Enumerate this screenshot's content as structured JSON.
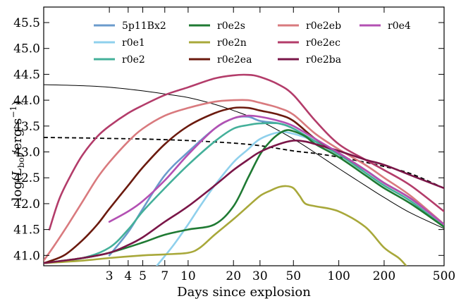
{
  "chart_data": {
    "type": "line",
    "xlabel": "Days since explosion",
    "ylabel_parts": [
      "log(",
      "L",
      "bol",
      "/erg s",
      "−1",
      ")"
    ],
    "x_scale": "log",
    "xlim": [
      1.1,
      500
    ],
    "ylim": [
      40.8,
      45.8
    ],
    "x_ticks": [
      3,
      4,
      5,
      7,
      10,
      20,
      30,
      50,
      100,
      200,
      500
    ],
    "y_ticks": [
      41.0,
      41.5,
      42.0,
      42.5,
      43.0,
      43.5,
      44.0,
      44.5,
      45.0,
      45.5
    ],
    "y_tick_labels": [
      "41.0",
      "41.5",
      "42.0",
      "42.5",
      "43.0",
      "43.5",
      "44.0",
      "44.5",
      "45.0",
      "45.5"
    ],
    "legend_position": "top",
    "series": [
      {
        "name": "5p11Bx2",
        "color": "#6b9bcc",
        "x": [
          3,
          4,
          5,
          7,
          10,
          15,
          20,
          25,
          30,
          40,
          50,
          70,
          100,
          150,
          200,
          300,
          500
        ],
        "y": [
          41.0,
          41.45,
          41.9,
          42.55,
          43.0,
          43.45,
          43.65,
          43.68,
          43.6,
          43.55,
          43.45,
          43.2,
          42.95,
          42.65,
          42.4,
          42.1,
          41.6
        ]
      },
      {
        "name": "r0e1",
        "color": "#8fd0ec",
        "x": [
          6.2,
          8,
          10,
          12,
          15,
          20,
          25,
          30,
          40,
          50,
          70,
          100,
          150,
          200,
          300,
          500
        ],
        "y": [
          40.8,
          41.2,
          41.6,
          41.95,
          42.35,
          42.8,
          43.05,
          43.25,
          43.38,
          43.35,
          43.2,
          42.95,
          42.65,
          42.4,
          42.1,
          41.6
        ]
      },
      {
        "name": "r0e2",
        "color": "#44b09a",
        "x": [
          1.1,
          2,
          3,
          4,
          5,
          7,
          10,
          15,
          20,
          25,
          30,
          40,
          50,
          70,
          100,
          150,
          200,
          300,
          500
        ],
        "y": [
          40.85,
          40.95,
          41.15,
          41.5,
          41.85,
          42.3,
          42.75,
          43.2,
          43.45,
          43.52,
          43.55,
          43.55,
          43.45,
          43.2,
          42.95,
          42.6,
          42.35,
          42.05,
          41.55
        ]
      },
      {
        "name": "r0e2s",
        "color": "#1f7a33",
        "x": [
          1.1,
          2,
          3,
          5,
          7,
          10,
          15,
          20,
          25,
          30,
          35,
          40,
          45,
          50,
          60,
          70,
          100,
          150,
          200,
          300,
          500
        ],
        "y": [
          40.85,
          40.95,
          41.05,
          41.25,
          41.4,
          41.5,
          41.6,
          41.95,
          42.5,
          42.95,
          43.2,
          43.35,
          43.42,
          43.4,
          43.3,
          43.15,
          42.9,
          42.55,
          42.3,
          42.0,
          41.55
        ]
      },
      {
        "name": "r0e2n",
        "color": "#a8a83a",
        "x": [
          1.1,
          2,
          3,
          5,
          7,
          10,
          12,
          15,
          20,
          25,
          30,
          35,
          40,
          45,
          50,
          55,
          60,
          70,
          100,
          150,
          200,
          250,
          280
        ],
        "y": [
          40.85,
          40.9,
          40.95,
          41.0,
          41.02,
          41.05,
          41.15,
          41.4,
          41.7,
          41.95,
          42.15,
          42.25,
          42.32,
          42.34,
          42.3,
          42.15,
          42.0,
          41.95,
          41.85,
          41.55,
          41.15,
          40.95,
          40.8
        ]
      },
      {
        "name": "r0e2ea",
        "color": "#6b1a0e",
        "x": [
          1.1,
          1.5,
          2,
          2.5,
          3,
          4,
          5,
          7,
          10,
          15,
          20,
          25,
          30,
          40,
          50,
          70,
          100,
          150,
          200,
          300,
          500
        ],
        "y": [
          40.85,
          41.0,
          41.3,
          41.6,
          41.9,
          42.35,
          42.7,
          43.15,
          43.5,
          43.75,
          43.85,
          43.85,
          43.8,
          43.72,
          43.6,
          43.25,
          42.98,
          42.65,
          42.4,
          42.1,
          41.6
        ]
      },
      {
        "name": "r0e2eb",
        "color": "#d97a7e",
        "x": [
          1.1,
          1.3,
          1.6,
          2,
          2.5,
          3,
          4,
          5,
          7,
          10,
          15,
          20,
          25,
          30,
          40,
          50,
          70,
          100,
          150,
          200,
          300,
          500
        ],
        "y": [
          40.9,
          41.2,
          41.6,
          42.05,
          42.5,
          42.8,
          43.2,
          43.45,
          43.7,
          43.85,
          43.97,
          44.0,
          44.0,
          43.95,
          43.85,
          43.72,
          43.35,
          43.05,
          42.75,
          42.5,
          42.15,
          41.6
        ]
      },
      {
        "name": "r0e2ec",
        "color": "#b33c6a",
        "x": [
          1.2,
          1.4,
          1.7,
          2,
          2.5,
          3,
          4,
          5,
          7,
          10,
          15,
          20,
          25,
          30,
          40,
          50,
          70,
          100,
          150,
          200,
          300,
          500
        ],
        "y": [
          41.5,
          42.1,
          42.6,
          42.95,
          43.3,
          43.5,
          43.75,
          43.9,
          44.1,
          44.25,
          44.42,
          44.48,
          44.49,
          44.45,
          44.3,
          44.1,
          43.6,
          43.15,
          42.85,
          42.65,
          42.35,
          41.85
        ]
      },
      {
        "name": "r0e2ba",
        "color": "#7a1648",
        "x": [
          1.1,
          2,
          3,
          4,
          5,
          7,
          10,
          15,
          20,
          25,
          30,
          40,
          50,
          60,
          70,
          100,
          150,
          200,
          300,
          500
        ],
        "y": [
          40.85,
          40.95,
          41.05,
          41.2,
          41.35,
          41.65,
          41.95,
          42.35,
          42.65,
          42.85,
          43.0,
          43.15,
          43.22,
          43.2,
          43.15,
          43.02,
          42.85,
          42.75,
          42.55,
          42.3
        ]
      },
      {
        "name": "r0e4",
        "color": "#b350b3",
        "x": [
          3,
          4,
          5,
          7,
          10,
          15,
          20,
          25,
          30,
          40,
          50,
          70,
          100,
          150,
          200,
          300,
          500
        ],
        "y": [
          41.65,
          41.85,
          42.05,
          42.45,
          42.95,
          43.45,
          43.65,
          43.7,
          43.68,
          43.6,
          43.5,
          43.25,
          42.98,
          42.65,
          42.4,
          42.1,
          41.6
        ]
      }
    ],
    "reference_lines": [
      {
        "style": "solid",
        "color": "#000000",
        "x": [
          1.1,
          2,
          3,
          5,
          7,
          10,
          15,
          20,
          30,
          50,
          70,
          100,
          150,
          200,
          300,
          500
        ],
        "y": [
          44.3,
          44.28,
          44.25,
          44.18,
          44.12,
          44.05,
          43.92,
          43.8,
          43.6,
          43.25,
          42.98,
          42.68,
          42.35,
          42.12,
          41.82,
          41.52
        ]
      },
      {
        "style": "dashed",
        "color": "#000000",
        "x": [
          1.1,
          2,
          3,
          5,
          10,
          20,
          30,
          50,
          70,
          100,
          150,
          200,
          300,
          500
        ],
        "y": [
          43.28,
          43.27,
          43.26,
          43.25,
          43.22,
          43.17,
          43.12,
          43.02,
          42.97,
          42.9,
          42.8,
          42.72,
          42.58,
          42.3
        ]
      }
    ]
  }
}
